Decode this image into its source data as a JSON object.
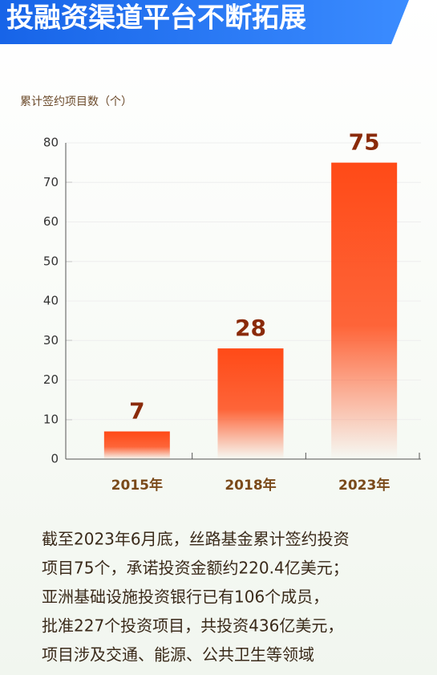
{
  "chart_data": {
    "type": "bar",
    "title": "投融资渠道平台不断拓展",
    "ylabel": "累计签约项目数（个）",
    "categories": [
      "2015年",
      "2018年",
      "2023年"
    ],
    "values": [
      7,
      28,
      75
    ],
    "color": "#ff4a17",
    "ylim": [
      0,
      80
    ],
    "yticks": [
      0,
      10,
      20,
      30,
      40,
      50,
      60,
      70,
      80
    ],
    "grid": true
  },
  "body": [
    "截至2023年6月底，丝路基金累计签约投资",
    "项目75个，承诺投资金额约220.4亿美元；",
    "亚洲基础设施投资银行已有106个成员，",
    "批准227个投资项目，共投资436亿美元，",
    "项目涉及交通、能源、公共卫生等领域"
  ]
}
